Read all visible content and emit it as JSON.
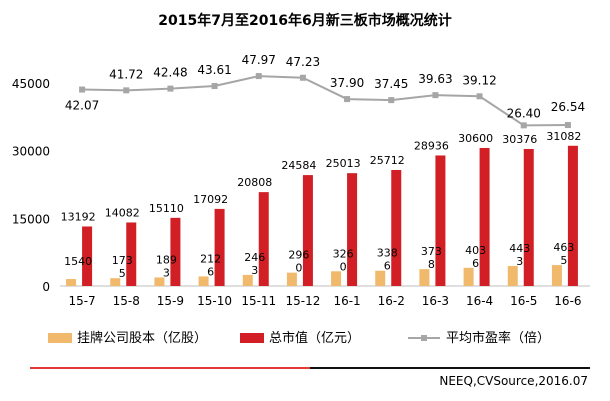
{
  "title": "2015年7月至2016年6月新三板市场概况统计",
  "source": "NEEQ,CVSource,2016.07",
  "colors": {
    "shares": "#f0b96b",
    "cap": "#d11f25",
    "pe": "#a6a6a6"
  },
  "chart_data": {
    "type": "bar",
    "categories": [
      "15-7",
      "15-8",
      "15-9",
      "15-10",
      "15-11",
      "15-12",
      "16-1",
      "16-2",
      "16-3",
      "16-4",
      "16-5",
      "16-6"
    ],
    "series": [
      {
        "name": "挂牌公司股本（亿股）",
        "type": "bar",
        "values": [
          1540,
          1735,
          1893,
          2126,
          2463,
          2960,
          3260,
          3386,
          3738,
          4036,
          4433,
          4635
        ],
        "labels": [
          "1540",
          "173\n5",
          "189\n3",
          "212\n6",
          "246\n3",
          "296\n0",
          "326\n0",
          "338\n6",
          "373\n8",
          "403\n6",
          "443\n3",
          "463\n5"
        ]
      },
      {
        "name": "总市值（亿元）",
        "type": "bar",
        "values": [
          13192,
          14082,
          15110,
          17092,
          20808,
          24584,
          25013,
          25712,
          28936,
          30600,
          30376,
          31082
        ],
        "labels": [
          "13192",
          "14082",
          "15110",
          "17092",
          "20808",
          "24584",
          "25013",
          "25712",
          "28936",
          "30600",
          "30376",
          "31082"
        ]
      },
      {
        "name": "平均市盈率（倍）",
        "type": "line",
        "values": [
          42.07,
          41.72,
          42.48,
          43.61,
          47.97,
          47.23,
          37.9,
          37.45,
          39.63,
          39.12,
          26.4,
          26.54
        ],
        "labels": [
          "42.07",
          "41.72",
          "42.48",
          "43.61",
          "47.97",
          "47.23",
          "37.90",
          "37.45",
          "39.63",
          "39.12",
          "26.40",
          "26.54"
        ]
      }
    ],
    "yticks": [
      "0",
      "15000",
      "30000",
      "45000"
    ],
    "ylim": [
      0,
      45000
    ],
    "legend_position": "bottom"
  }
}
